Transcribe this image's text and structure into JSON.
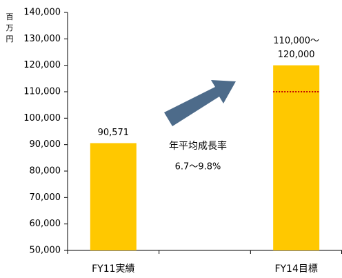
{
  "chart_data": {
    "type": "bar",
    "unit_label": [
      "百",
      "万",
      "円"
    ],
    "categories": [
      "FY11実績",
      null,
      "FY14目標"
    ],
    "values": [
      90571,
      null,
      120000
    ],
    "value_labels": [
      [
        "90,571"
      ],
      null,
      [
        "110,000〜",
        "120,000"
      ]
    ],
    "target_lower": [
      null,
      null,
      110000
    ],
    "color": "#ffc800",
    "target_color": "#c00000",
    "annotations": [
      "年平均成長率",
      "6.7〜9.8%"
    ],
    "ylim": [
      50000,
      140000
    ],
    "yticks": [
      {
        "value": 50000,
        "label": "50,000"
      },
      {
        "value": 60000,
        "label": "60,000"
      },
      {
        "value": 70000,
        "label": "70,000"
      },
      {
        "value": 80000,
        "label": "80,000"
      },
      {
        "value": 90000,
        "label": "90,000"
      },
      {
        "value": 100000,
        "label": "100,000"
      },
      {
        "value": 110000,
        "label": "110,000"
      },
      {
        "value": 120000,
        "label": "120,000"
      },
      {
        "value": 130000,
        "label": "130,000"
      },
      {
        "value": 140000,
        "label": "140,000"
      }
    ]
  }
}
